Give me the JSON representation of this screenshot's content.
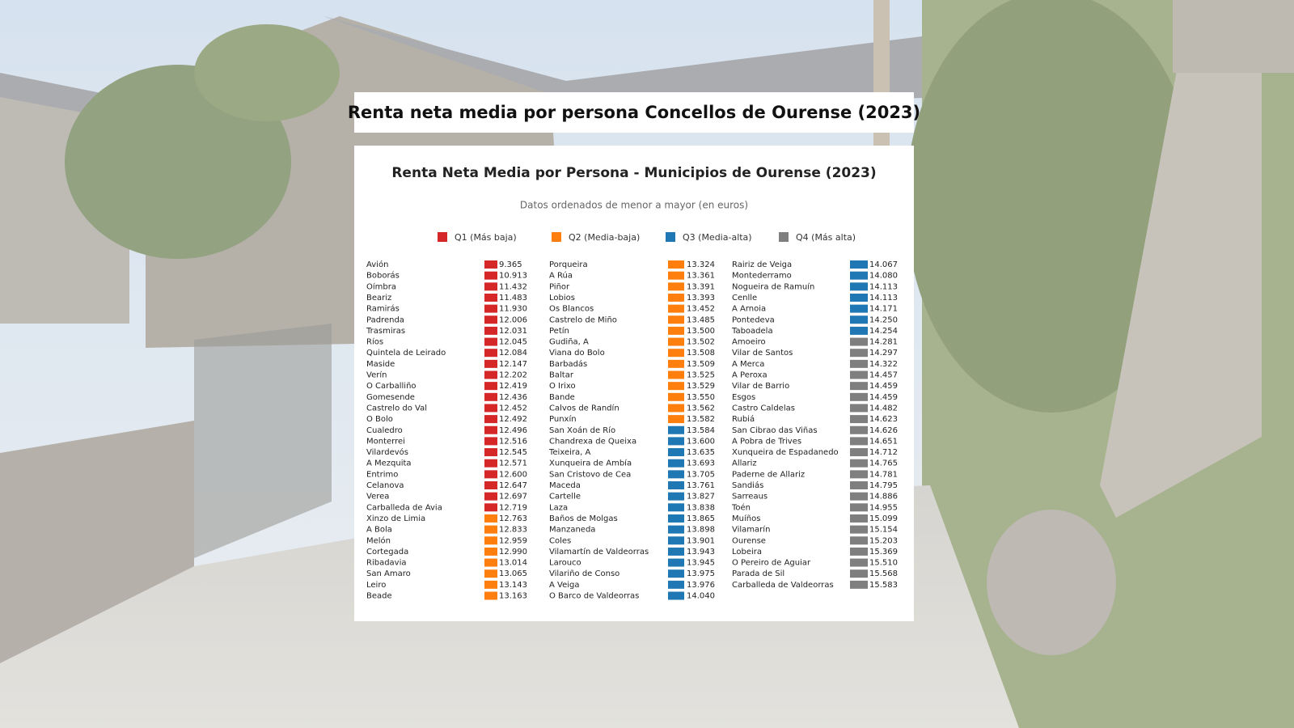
{
  "header": {
    "title": "Renta neta media por persona Concellos de Ourense (2023)"
  },
  "panel": {
    "title": "Renta Neta Media por Persona - Municipios de Ourense (2023)",
    "subtitle": "Datos ordenados de menor a mayor (en euros)",
    "legend": [
      {
        "label": "Q1 (Más baja)",
        "color": "#d62728"
      },
      {
        "label": "Q2 (Media-baja)",
        "color": "#ff7f0e"
      },
      {
        "label": "Q3 (Media-alta)",
        "color": "#1f77b4"
      },
      {
        "label": "Q4 (Más alta)",
        "color": "#7f7f7f"
      }
    ],
    "columns": [
      [
        {
          "name": "Avión",
          "value": "9.365",
          "color": "#d62728"
        },
        {
          "name": "Boborás",
          "value": "10.913",
          "color": "#d62728"
        },
        {
          "name": "Oímbra",
          "value": "11.432",
          "color": "#d62728"
        },
        {
          "name": "Beariz",
          "value": "11.483",
          "color": "#d62728"
        },
        {
          "name": "Ramirás",
          "value": "11.930",
          "color": "#d62728"
        },
        {
          "name": "Padrenda",
          "value": "12.006",
          "color": "#d62728"
        },
        {
          "name": "Trasmiras",
          "value": "12.031",
          "color": "#d62728"
        },
        {
          "name": "Ríos",
          "value": "12.045",
          "color": "#d62728"
        },
        {
          "name": "Quintela de Leirado",
          "value": "12.084",
          "color": "#d62728"
        },
        {
          "name": "Maside",
          "value": "12.147",
          "color": "#d62728"
        },
        {
          "name": "Verín",
          "value": "12.202",
          "color": "#d62728"
        },
        {
          "name": "O Carballiño",
          "value": "12.419",
          "color": "#d62728"
        },
        {
          "name": "Gomesende",
          "value": "12.436",
          "color": "#d62728"
        },
        {
          "name": "Castrelo do Val",
          "value": "12.452",
          "color": "#d62728"
        },
        {
          "name": "O Bolo",
          "value": "12.492",
          "color": "#d62728"
        },
        {
          "name": "Cualedro",
          "value": "12.496",
          "color": "#d62728"
        },
        {
          "name": "Monterrei",
          "value": "12.516",
          "color": "#d62728"
        },
        {
          "name": "Vilardevós",
          "value": "12.545",
          "color": "#d62728"
        },
        {
          "name": "A Mezquita",
          "value": "12.571",
          "color": "#d62728"
        },
        {
          "name": "Entrimo",
          "value": "12.600",
          "color": "#d62728"
        },
        {
          "name": "Celanova",
          "value": "12.647",
          "color": "#d62728"
        },
        {
          "name": "Verea",
          "value": "12.697",
          "color": "#d62728"
        },
        {
          "name": "Carballeda de Avia",
          "value": "12.719",
          "color": "#d62728"
        },
        {
          "name": "Xinzo de Limia",
          "value": "12.763",
          "color": "#ff7f0e"
        },
        {
          "name": "A Bola",
          "value": "12.833",
          "color": "#ff7f0e"
        },
        {
          "name": "Melón",
          "value": "12.959",
          "color": "#ff7f0e"
        },
        {
          "name": "Cortegada",
          "value": "12.990",
          "color": "#ff7f0e"
        },
        {
          "name": "Ribadavia",
          "value": "13.014",
          "color": "#ff7f0e"
        },
        {
          "name": "San Amaro",
          "value": "13.065",
          "color": "#ff7f0e"
        },
        {
          "name": "Leiro",
          "value": "13.143",
          "color": "#ff7f0e"
        },
        {
          "name": "Beade",
          "value": "13.163",
          "color": "#ff7f0e"
        }
      ],
      [
        {
          "name": "Porqueira",
          "value": "13.324",
          "color": "#ff7f0e"
        },
        {
          "name": "A Rúa",
          "value": "13.361",
          "color": "#ff7f0e"
        },
        {
          "name": "Piñor",
          "value": "13.391",
          "color": "#ff7f0e"
        },
        {
          "name": "Lobios",
          "value": "13.393",
          "color": "#ff7f0e"
        },
        {
          "name": "Os Blancos",
          "value": "13.452",
          "color": "#ff7f0e"
        },
        {
          "name": "Castrelo de Miño",
          "value": "13.485",
          "color": "#ff7f0e"
        },
        {
          "name": "Petín",
          "value": "13.500",
          "color": "#ff7f0e"
        },
        {
          "name": "Gudiña, A",
          "value": "13.502",
          "color": "#ff7f0e"
        },
        {
          "name": "Viana do Bolo",
          "value": "13.508",
          "color": "#ff7f0e"
        },
        {
          "name": "Barbadás",
          "value": "13.509",
          "color": "#ff7f0e"
        },
        {
          "name": "Baltar",
          "value": "13.525",
          "color": "#ff7f0e"
        },
        {
          "name": "O Irixo",
          "value": "13.529",
          "color": "#ff7f0e"
        },
        {
          "name": "Bande",
          "value": "13.550",
          "color": "#ff7f0e"
        },
        {
          "name": "Calvos de Randín",
          "value": "13.562",
          "color": "#ff7f0e"
        },
        {
          "name": "Punxín",
          "value": "13.582",
          "color": "#ff7f0e"
        },
        {
          "name": "San Xoán de Río",
          "value": "13.584",
          "color": "#1f77b4"
        },
        {
          "name": "Chandrexa de Queixa",
          "value": "13.600",
          "color": "#1f77b4"
        },
        {
          "name": "Teixeira, A",
          "value": "13.635",
          "color": "#1f77b4"
        },
        {
          "name": "Xunqueira de Ambía",
          "value": "13.693",
          "color": "#1f77b4"
        },
        {
          "name": "San Cristovo de Cea",
          "value": "13.705",
          "color": "#1f77b4"
        },
        {
          "name": "Maceda",
          "value": "13.761",
          "color": "#1f77b4"
        },
        {
          "name": "Cartelle",
          "value": "13.827",
          "color": "#1f77b4"
        },
        {
          "name": "Laza",
          "value": "13.838",
          "color": "#1f77b4"
        },
        {
          "name": "Baños de Molgas",
          "value": "13.865",
          "color": "#1f77b4"
        },
        {
          "name": "Manzaneda",
          "value": "13.898",
          "color": "#1f77b4"
        },
        {
          "name": "Coles",
          "value": "13.901",
          "color": "#1f77b4"
        },
        {
          "name": "Vilamartín de Valdeorras",
          "value": "13.943",
          "color": "#1f77b4"
        },
        {
          "name": "Larouco",
          "value": "13.945",
          "color": "#1f77b4"
        },
        {
          "name": "Vilariño de Conso",
          "value": "13.975",
          "color": "#1f77b4"
        },
        {
          "name": "A Veiga",
          "value": "13.976",
          "color": "#1f77b4"
        },
        {
          "name": "O Barco de Valdeorras",
          "value": "14.040",
          "color": "#1f77b4"
        }
      ],
      [
        {
          "name": "Rairiz de Veiga",
          "value": "14.067",
          "color": "#1f77b4"
        },
        {
          "name": "Montederramo",
          "value": "14.080",
          "color": "#1f77b4"
        },
        {
          "name": "Nogueira de Ramuín",
          "value": "14.113",
          "color": "#1f77b4"
        },
        {
          "name": "Cenlle",
          "value": "14.113",
          "color": "#1f77b4"
        },
        {
          "name": "A Arnoia",
          "value": "14.171",
          "color": "#1f77b4"
        },
        {
          "name": "Pontedeva",
          "value": "14.250",
          "color": "#1f77b4"
        },
        {
          "name": "Taboadela",
          "value": "14.254",
          "color": "#1f77b4"
        },
        {
          "name": "Amoeiro",
          "value": "14.281",
          "color": "#7f7f7f"
        },
        {
          "name": "Vilar de Santos",
          "value": "14.297",
          "color": "#7f7f7f"
        },
        {
          "name": "A Merca",
          "value": "14.322",
          "color": "#7f7f7f"
        },
        {
          "name": "A Peroxa",
          "value": "14.457",
          "color": "#7f7f7f"
        },
        {
          "name": "Vilar de Barrio",
          "value": "14.459",
          "color": "#7f7f7f"
        },
        {
          "name": "Esgos",
          "value": "14.459",
          "color": "#7f7f7f"
        },
        {
          "name": "Castro Caldelas",
          "value": "14.482",
          "color": "#7f7f7f"
        },
        {
          "name": "Rubiá",
          "value": "14.623",
          "color": "#7f7f7f"
        },
        {
          "name": "San Cibrao das Viñas",
          "value": "14.626",
          "color": "#7f7f7f"
        },
        {
          "name": "A Pobra de Trives",
          "value": "14.651",
          "color": "#7f7f7f"
        },
        {
          "name": "Xunqueira de Espadanedo",
          "value": "14.712",
          "color": "#7f7f7f"
        },
        {
          "name": "Allariz",
          "value": "14.765",
          "color": "#7f7f7f"
        },
        {
          "name": "Paderne de Allariz",
          "value": "14.781",
          "color": "#7f7f7f"
        },
        {
          "name": "Sandiás",
          "value": "14.795",
          "color": "#7f7f7f"
        },
        {
          "name": "Sarreaus",
          "value": "14.886",
          "color": "#7f7f7f"
        },
        {
          "name": "Toén",
          "value": "14.955",
          "color": "#7f7f7f"
        },
        {
          "name": "Muíños",
          "value": "15.099",
          "color": "#7f7f7f"
        },
        {
          "name": "Vilamarín",
          "value": "15.154",
          "color": "#7f7f7f"
        },
        {
          "name": "Ourense",
          "value": "15.203",
          "color": "#7f7f7f"
        },
        {
          "name": "Lobeira",
          "value": "15.369",
          "color": "#7f7f7f"
        },
        {
          "name": "O Pereiro de Aguiar",
          "value": "15.510",
          "color": "#7f7f7f"
        },
        {
          "name": "Parada de Sil",
          "value": "15.568",
          "color": "#7f7f7f"
        },
        {
          "name": "Carballeda de Valdeorras",
          "value": "15.583",
          "color": "#7f7f7f"
        }
      ]
    ]
  }
}
